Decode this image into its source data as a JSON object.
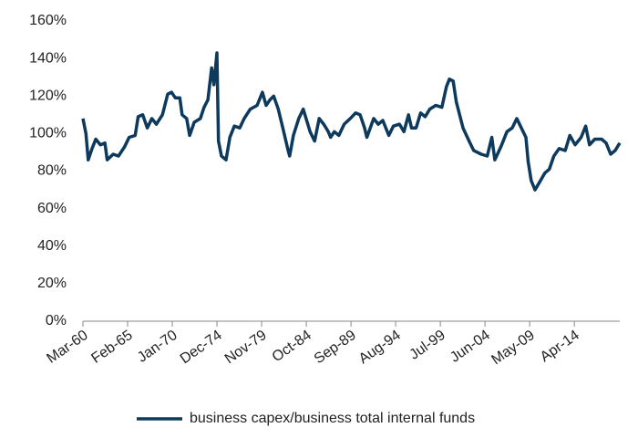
{
  "chart_data": {
    "type": "line",
    "x": [
      "1960-03",
      "1960-07",
      "1960-10",
      "1961-03",
      "1961-08",
      "1962-02",
      "1962-08",
      "1962-11",
      "1963-07",
      "1964-02",
      "1964-10",
      "1965-04",
      "1965-12",
      "1966-04",
      "1966-10",
      "1967-04",
      "1967-10",
      "1968-04",
      "1968-12",
      "1969-07",
      "1969-12",
      "1970-05",
      "1970-11",
      "1971-02",
      "1971-08",
      "1971-12",
      "1972-06",
      "1973-02",
      "1973-07",
      "1973-12",
      "1974-05",
      "1974-08",
      "1974-12",
      "1975-02",
      "1975-06",
      "1975-12",
      "1976-05",
      "1976-11",
      "1977-06",
      "1977-12",
      "1978-08",
      "1979-05",
      "1979-12",
      "1980-05",
      "1980-10",
      "1981-03",
      "1981-09",
      "1982-03",
      "1982-10",
      "1982-12",
      "1983-05",
      "1983-12",
      "1984-06",
      "1985-03",
      "1985-09",
      "1986-03",
      "1986-09",
      "1987-03",
      "1987-06",
      "1987-11",
      "1988-05",
      "1988-12",
      "1989-08",
      "1990-03",
      "1990-09",
      "1991-03",
      "1991-06",
      "1992-03",
      "1992-09",
      "1993-03",
      "1993-11",
      "1994-05",
      "1995-01",
      "1995-07",
      "1996-01",
      "1996-05",
      "1996-11",
      "1997-05",
      "1997-11",
      "1998-05",
      "1999-01",
      "1999-09",
      "2000-03",
      "2000-07",
      "2000-12",
      "2001-04",
      "2002-01",
      "2002-09",
      "2003-03",
      "2004-01",
      "2004-09",
      "2005-03",
      "2005-07",
      "2006-03",
      "2006-11",
      "2007-06",
      "2007-12",
      "2008-06",
      "2008-12",
      "2009-03",
      "2009-07",
      "2009-12",
      "2010-06",
      "2011-01",
      "2011-07",
      "2012-01",
      "2012-08",
      "2013-04",
      "2013-10",
      "2014-05",
      "2015-01",
      "2015-07",
      "2015-12",
      "2016-07",
      "2017-04",
      "2017-10",
      "2018-04",
      "2018-10",
      "2019-04"
    ],
    "series": [
      {
        "name": "business capex/business total internal funds",
        "color": "#0d3a5c",
        "values": [
          108,
          100,
          86,
          92,
          97,
          94,
          95,
          86,
          89,
          88,
          93,
          98,
          99,
          109,
          110,
          103,
          108,
          105,
          110,
          121,
          122,
          119,
          119,
          110,
          108,
          99,
          106,
          108,
          114,
          118,
          135,
          126,
          143,
          96,
          88,
          86,
          98,
          104,
          103,
          108,
          113,
          115,
          122,
          115,
          118,
          120,
          113,
          103,
          91,
          88,
          99,
          108,
          113,
          101,
          96,
          108,
          105,
          101,
          98,
          101,
          99,
          105,
          108,
          111,
          110,
          103,
          98,
          108,
          105,
          107,
          99,
          104,
          105,
          101,
          110,
          103,
          103,
          111,
          109,
          113,
          115,
          114,
          125,
          129,
          128,
          117,
          103,
          96,
          91,
          89,
          88,
          98,
          86,
          93,
          101,
          103,
          108,
          103,
          98,
          85,
          75,
          70,
          74,
          79,
          81,
          88,
          92,
          91,
          99,
          94,
          98,
          104,
          94,
          97,
          97,
          95,
          89,
          91,
          95
        ]
      }
    ],
    "xlim": [
      "1960-03",
      "2019-04"
    ],
    "xticks": [
      {
        "value": "1960-03",
        "label": "Mar-60"
      },
      {
        "value": "1965-02",
        "label": "Feb-65"
      },
      {
        "value": "1970-01",
        "label": "Jan-70"
      },
      {
        "value": "1974-12",
        "label": "Dec-74"
      },
      {
        "value": "1979-11",
        "label": "Nov-79"
      },
      {
        "value": "1984-10",
        "label": "Oct-84"
      },
      {
        "value": "1989-09",
        "label": "Sep-89"
      },
      {
        "value": "1994-08",
        "label": "Aug-94"
      },
      {
        "value": "1999-07",
        "label": "Jul-99"
      },
      {
        "value": "2004-06",
        "label": "Jun-04"
      },
      {
        "value": "2009-05",
        "label": "May-09"
      },
      {
        "value": "2014-04",
        "label": "Apr-14"
      }
    ],
    "ylim": [
      0,
      160
    ],
    "yticks": [
      {
        "value": 0,
        "label": "0%"
      },
      {
        "value": 20,
        "label": "20%"
      },
      {
        "value": 40,
        "label": "40%"
      },
      {
        "value": 60,
        "label": "60%"
      },
      {
        "value": 80,
        "label": "80%"
      },
      {
        "value": 100,
        "label": "100%"
      },
      {
        "value": 120,
        "label": "120%"
      },
      {
        "value": 140,
        "label": "140%"
      },
      {
        "value": 160,
        "label": "160%"
      }
    ],
    "grid": false,
    "legend": "bottom"
  }
}
